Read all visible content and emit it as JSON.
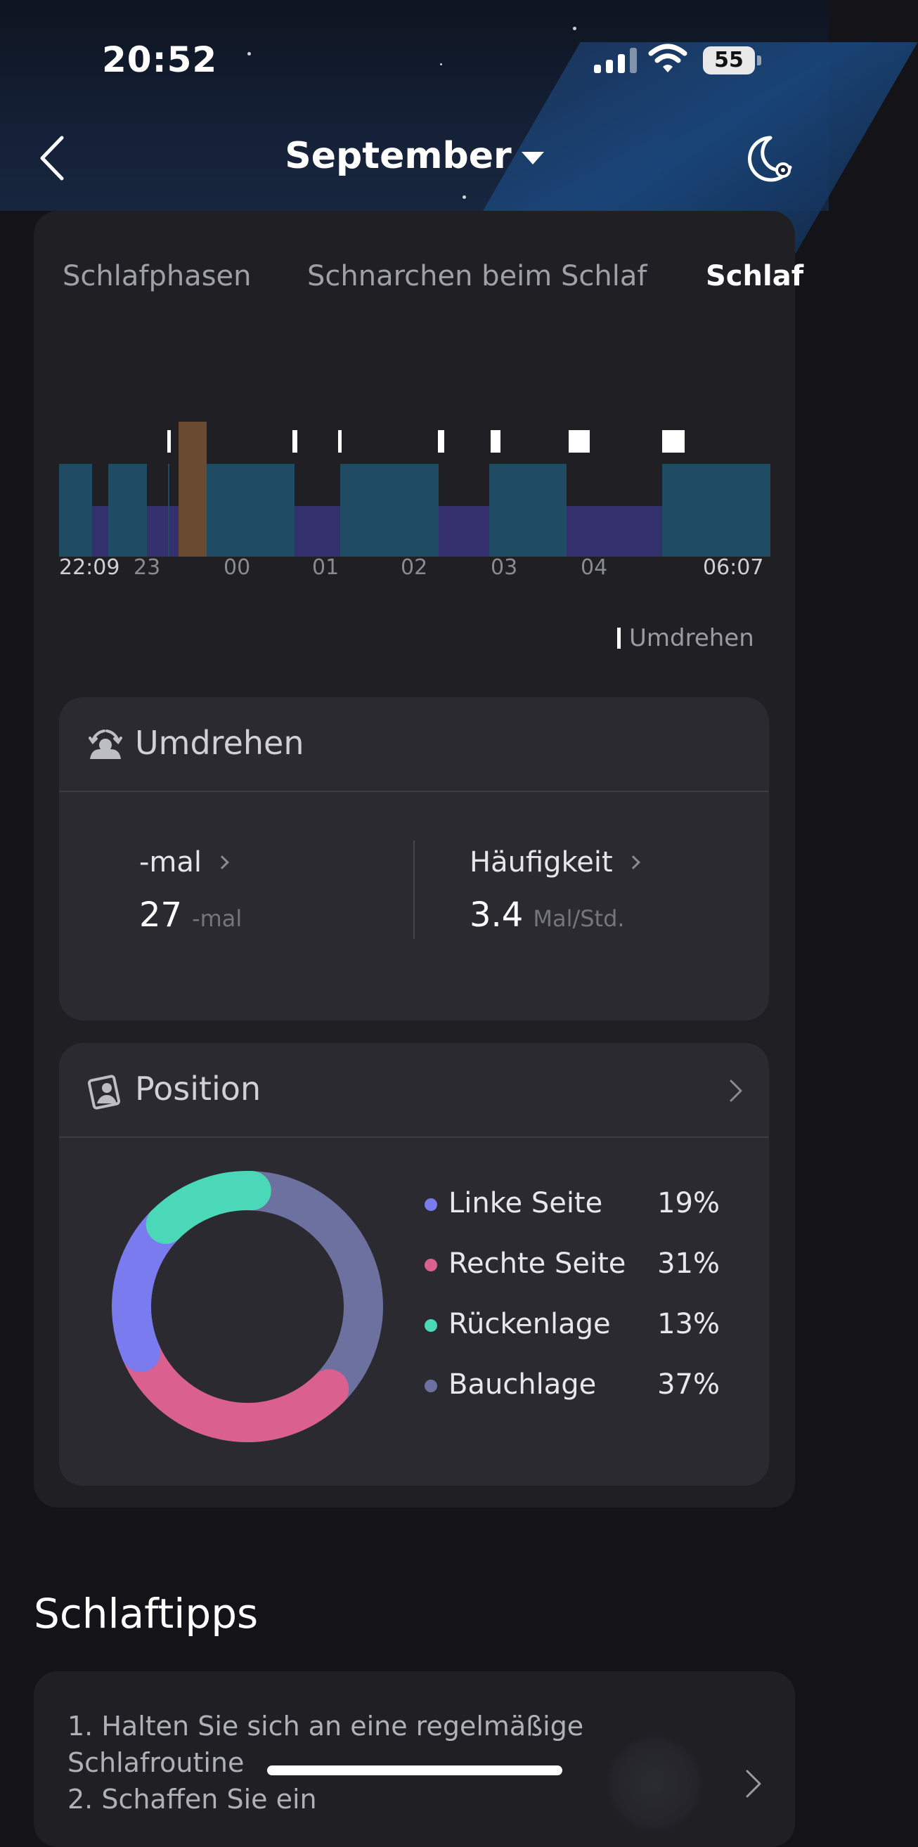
{
  "status_bar": {
    "time": "20:52",
    "battery": "55"
  },
  "nav": {
    "title": "September"
  },
  "tabs": [
    {
      "label": "Schlafphasen",
      "active": false
    },
    {
      "label": "Schnarchen beim Schlaf",
      "active": false
    },
    {
      "label": "Schlaf",
      "active": true
    }
  ],
  "sleep_chart": {
    "x_ticks": [
      "22:09",
      "23",
      "00",
      "01",
      "02",
      "03",
      "04",
      "06:07"
    ],
    "legend": "Umdrehen"
  },
  "turning": {
    "title": "Umdrehen",
    "count_label": "-mal",
    "count_value": "27",
    "count_unit": "-mal",
    "freq_label": "Häufigkeit",
    "freq_value": "3.4",
    "freq_unit": "Mal/Std."
  },
  "position": {
    "title": "Position",
    "items": [
      {
        "label": "Linke Seite",
        "pct": "19%",
        "value": 19,
        "color": "#7b7bf0"
      },
      {
        "label": "Rechte Seite",
        "pct": "31%",
        "value": 31,
        "color": "#d9608f"
      },
      {
        "label": "Rückenlage",
        "pct": "13%",
        "value": 13,
        "color": "#4ad8b8"
      },
      {
        "label": "Bauchlage",
        "pct": "37%",
        "value": 37,
        "color": "#6c71a0"
      }
    ]
  },
  "tips": {
    "title": "Schlaftipps",
    "line1": "1. Halten Sie sich an eine regelmäßige",
    "line2": "Schlafroutine",
    "line3": "2. Schaffen Sie ein"
  },
  "colors": {
    "deep_sleep": "#1f4c63",
    "light_sleep": "#34306e",
    "awake": "#6b4a32",
    "turn_marker": "#ffffff"
  }
}
